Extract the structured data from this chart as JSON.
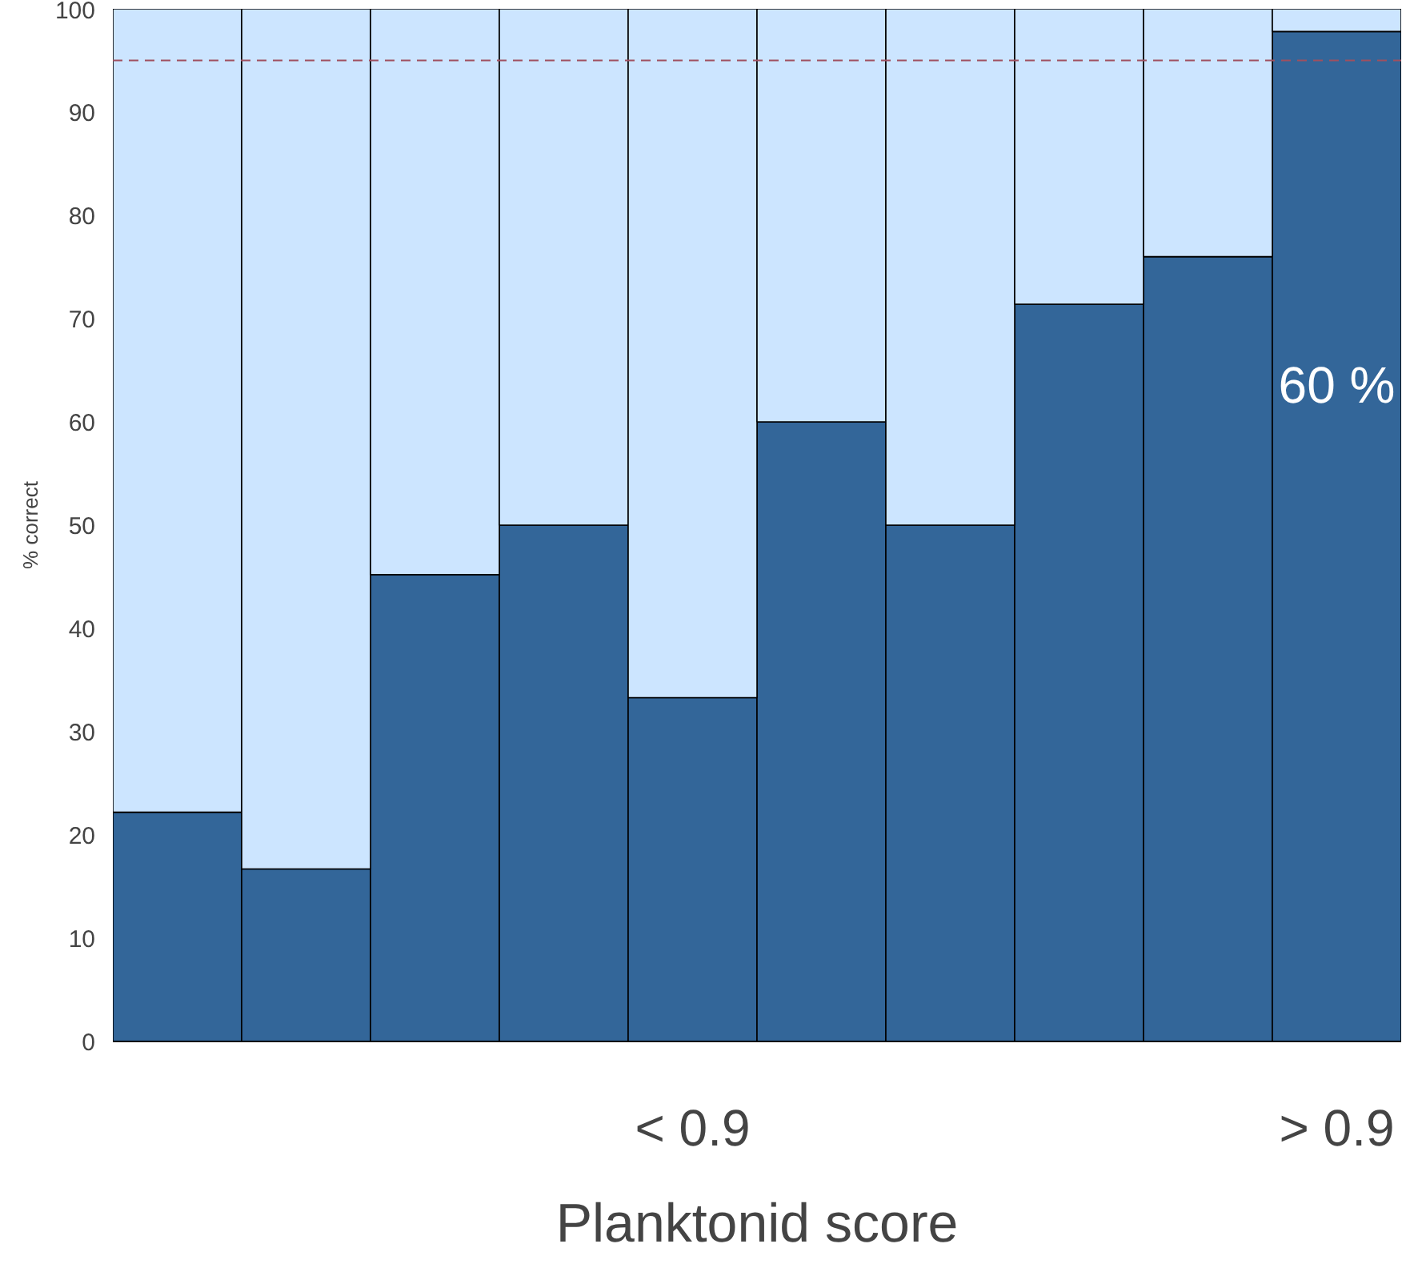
{
  "chart_data": {
    "type": "bar",
    "stacked": true,
    "ylabel": "% correct",
    "xlabel": "Planktonid score",
    "categories": [
      null,
      null,
      null,
      null,
      null,
      null,
      null,
      null,
      null,
      null
    ],
    "series": [
      {
        "color": "#336699",
        "values": [
          22.2,
          16.7,
          45.2,
          50,
          33.3,
          60,
          50,
          71.4,
          76,
          97.8
        ]
      },
      {
        "color": "#cce5ff",
        "values": [
          77.8,
          83.3,
          54.8,
          50,
          66.7,
          40,
          50,
          28.6,
          24,
          2.2
        ]
      }
    ],
    "ylim": [
      0,
      100
    ],
    "yticks": [
      0,
      10,
      20,
      30,
      40,
      50,
      60,
      70,
      80,
      90,
      100
    ],
    "ref_lines": [
      {
        "axis": "y",
        "value": 95,
        "color": "#a05060",
        "line_style": "dashed"
      }
    ],
    "annotations": [
      "< 0.9",
      "> 0.9",
      "60 %"
    ]
  }
}
